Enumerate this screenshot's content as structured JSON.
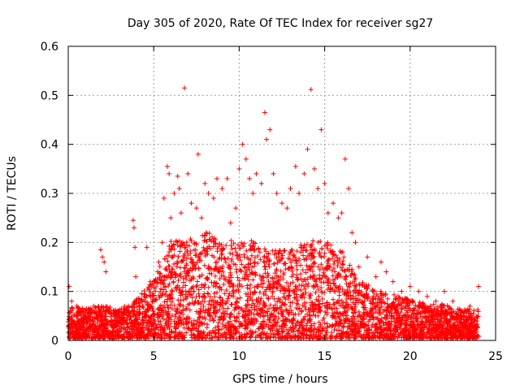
{
  "chart_data": {
    "type": "scatter",
    "title": "Day 305 of 2020, Rate Of TEC Index for receiver sg27",
    "xlabel": "GPS time / hours",
    "ylabel": "ROTI / TECUs",
    "xlim": [
      0,
      25
    ],
    "ylim": [
      0,
      0.6
    ],
    "xticks": [
      "0",
      "5",
      "10",
      "15",
      "20",
      "25"
    ],
    "yticks": [
      "0",
      "0.1",
      "0.2",
      "0.3",
      "0.4",
      "0.5",
      "0.6"
    ],
    "grid": true,
    "legend": "none",
    "marker": "plus",
    "color": "#ff0000",
    "series": [
      {
        "points": [
          [
            0.05,
            0.11
          ],
          [
            0.2,
            0.08
          ],
          [
            0.5,
            0.07
          ],
          [
            1.0,
            0.06
          ],
          [
            1.5,
            0.07
          ],
          [
            1.9,
            0.185
          ],
          [
            2.0,
            0.17
          ],
          [
            2.1,
            0.16
          ],
          [
            2.2,
            0.14
          ],
          [
            2.5,
            0.06
          ],
          [
            3.0,
            0.05
          ],
          [
            3.5,
            0.06
          ],
          [
            3.8,
            0.245
          ],
          [
            3.85,
            0.23
          ],
          [
            3.9,
            0.19
          ],
          [
            3.95,
            0.13
          ],
          [
            4.2,
            0.07
          ],
          [
            4.5,
            0.09
          ],
          [
            4.6,
            0.19
          ],
          [
            4.8,
            0.12
          ],
          [
            5.0,
            0.08
          ],
          [
            5.3,
            0.16
          ],
          [
            5.5,
            0.2
          ],
          [
            5.6,
            0.29
          ],
          [
            5.8,
            0.355
          ],
          [
            5.9,
            0.34
          ],
          [
            6.0,
            0.25
          ],
          [
            6.2,
            0.3
          ],
          [
            6.4,
            0.335
          ],
          [
            6.5,
            0.31
          ],
          [
            6.6,
            0.26
          ],
          [
            6.7,
            0.2
          ],
          [
            6.8,
            0.515
          ],
          [
            7.0,
            0.34
          ],
          [
            7.2,
            0.28
          ],
          [
            7.5,
            0.27
          ],
          [
            7.6,
            0.38
          ],
          [
            7.8,
            0.25
          ],
          [
            8.0,
            0.32
          ],
          [
            8.2,
            0.3
          ],
          [
            8.5,
            0.29
          ],
          [
            8.7,
            0.33
          ],
          [
            9.0,
            0.31
          ],
          [
            9.3,
            0.33
          ],
          [
            9.5,
            0.24
          ],
          [
            9.8,
            0.27
          ],
          [
            10.0,
            0.35
          ],
          [
            10.2,
            0.4
          ],
          [
            10.4,
            0.37
          ],
          [
            10.6,
            0.33
          ],
          [
            10.8,
            0.3
          ],
          [
            11.0,
            0.34
          ],
          [
            11.3,
            0.32
          ],
          [
            11.5,
            0.465
          ],
          [
            11.6,
            0.41
          ],
          [
            11.8,
            0.43
          ],
          [
            12.0,
            0.34
          ],
          [
            12.2,
            0.3
          ],
          [
            12.5,
            0.28
          ],
          [
            12.8,
            0.27
          ],
          [
            13.0,
            0.31
          ],
          [
            13.3,
            0.355
          ],
          [
            13.5,
            0.3
          ],
          [
            13.8,
            0.34
          ],
          [
            14.0,
            0.39
          ],
          [
            14.2,
            0.512
          ],
          [
            14.4,
            0.35
          ],
          [
            14.6,
            0.31
          ],
          [
            14.8,
            0.43
          ],
          [
            15.0,
            0.32
          ],
          [
            15.2,
            0.26
          ],
          [
            15.5,
            0.28
          ],
          [
            15.8,
            0.25
          ],
          [
            16.0,
            0.26
          ],
          [
            16.2,
            0.37
          ],
          [
            16.4,
            0.31
          ],
          [
            16.6,
            0.22
          ],
          [
            16.8,
            0.2
          ],
          [
            17.0,
            0.15
          ],
          [
            17.5,
            0.17
          ],
          [
            18.0,
            0.13
          ],
          [
            18.3,
            0.16
          ],
          [
            18.6,
            0.14
          ],
          [
            19.0,
            0.12
          ],
          [
            19.5,
            0.1
          ],
          [
            20.0,
            0.11
          ],
          [
            20.5,
            0.1
          ],
          [
            21.0,
            0.09
          ],
          [
            21.5,
            0.08
          ],
          [
            22.0,
            0.1
          ],
          [
            22.5,
            0.08
          ],
          [
            23.0,
            0.06
          ],
          [
            23.5,
            0.07
          ],
          [
            24.0,
            0.11
          ]
        ],
        "baseline_envelope": [
          [
            0,
            0.07
          ],
          [
            1,
            0.06
          ],
          [
            2,
            0.07
          ],
          [
            3,
            0.06
          ],
          [
            4,
            0.08
          ],
          [
            5,
            0.12
          ],
          [
            6,
            0.2
          ],
          [
            7,
            0.2
          ],
          [
            8,
            0.22
          ],
          [
            9,
            0.2
          ],
          [
            10,
            0.2
          ],
          [
            11,
            0.2
          ],
          [
            12,
            0.18
          ],
          [
            13,
            0.18
          ],
          [
            14,
            0.2
          ],
          [
            15,
            0.2
          ],
          [
            16,
            0.18
          ],
          [
            17,
            0.12
          ],
          [
            18,
            0.1
          ],
          [
            19,
            0.09
          ],
          [
            20,
            0.08
          ],
          [
            21,
            0.07
          ],
          [
            22,
            0.07
          ],
          [
            23,
            0.06
          ],
          [
            24,
            0.06
          ]
        ]
      }
    ]
  }
}
